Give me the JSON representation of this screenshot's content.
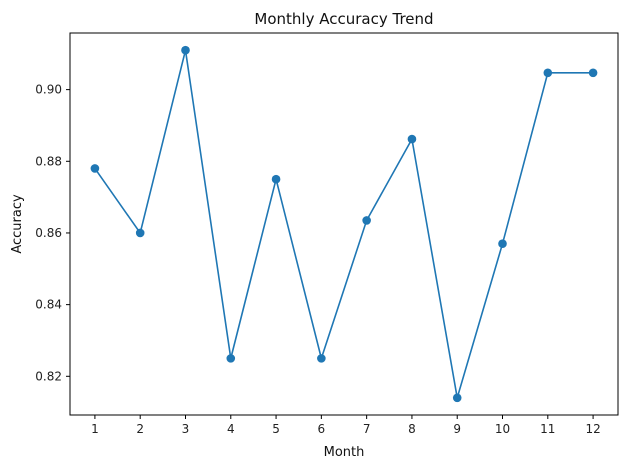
{
  "chart_data": {
    "type": "line",
    "title": "Monthly Accuracy Trend",
    "xlabel": "Month",
    "ylabel": "Accuracy",
    "x": [
      1,
      2,
      3,
      4,
      5,
      6,
      7,
      8,
      9,
      10,
      11,
      12
    ],
    "series": [
      {
        "values": [
          0.878,
          0.86,
          0.911,
          0.825,
          0.875,
          0.825,
          0.8635,
          0.8862,
          0.814,
          0.857,
          0.9047,
          0.9047
        ],
        "color": "#1f77b4",
        "marker": "circle"
      }
    ],
    "xticks": [
      "1",
      "2",
      "3",
      "4",
      "5",
      "6",
      "7",
      "8",
      "9",
      "10",
      "11",
      "12"
    ],
    "yticks": [
      "0.82",
      "0.84",
      "0.86",
      "0.88",
      "0.90"
    ],
    "ytick_values": [
      0.82,
      0.84,
      0.86,
      0.88,
      0.9
    ],
    "xlim": [
      0.45,
      12.55
    ],
    "ylim": [
      0.8092,
      0.9158
    ],
    "grid": false,
    "legend": "none"
  }
}
